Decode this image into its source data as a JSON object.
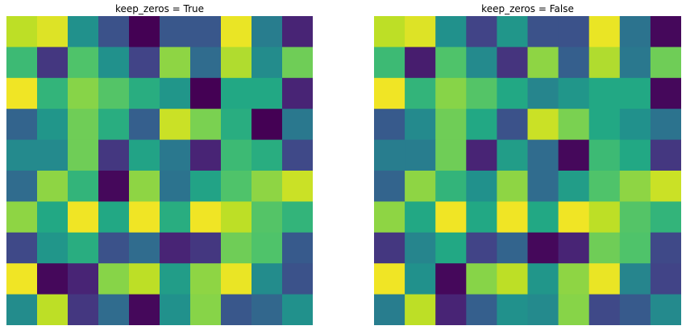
{
  "chart_data": [
    {
      "type": "heatmap",
      "title": "keep_zeros = True",
      "grid": false,
      "colormap": "viridis",
      "values": [
        [
          0.9,
          0.95,
          0.5,
          0.25,
          0.0,
          0.27,
          0.27,
          0.97,
          0.42,
          0.1
        ],
        [
          0.68,
          0.16,
          0.72,
          0.5,
          0.2,
          0.83,
          0.35,
          0.88,
          0.48,
          0.78
        ],
        [
          0.98,
          0.65,
          0.82,
          0.73,
          0.62,
          0.52,
          0.0,
          0.6,
          0.6,
          0.1
        ],
        [
          0.32,
          0.52,
          0.78,
          0.62,
          0.3,
          0.92,
          0.8,
          0.62,
          0.0,
          0.4
        ],
        [
          0.47,
          0.47,
          0.78,
          0.16,
          0.58,
          0.4,
          0.1,
          0.68,
          0.62,
          0.22
        ],
        [
          0.35,
          0.83,
          0.65,
          0.02,
          0.83,
          0.38,
          0.58,
          0.72,
          0.83,
          0.92
        ],
        [
          0.83,
          0.6,
          0.98,
          0.6,
          0.98,
          0.62,
          0.98,
          0.9,
          0.73,
          0.65
        ],
        [
          0.22,
          0.52,
          0.62,
          0.25,
          0.35,
          0.1,
          0.16,
          0.78,
          0.72,
          0.28
        ],
        [
          0.98,
          0.02,
          0.1,
          0.82,
          0.9,
          0.55,
          0.83,
          0.97,
          0.48,
          0.25
        ],
        [
          0.48,
          0.9,
          0.16,
          0.35,
          0.02,
          0.5,
          0.82,
          0.27,
          0.33,
          0.5
        ]
      ]
    },
    {
      "type": "heatmap",
      "title": "keep_zeros = False",
      "grid": false,
      "colormap": "viridis",
      "values": [
        [
          0.9,
          0.95,
          0.5,
          0.2,
          0.52,
          0.25,
          0.25,
          0.97,
          0.38,
          0.02
        ],
        [
          0.68,
          0.08,
          0.72,
          0.47,
          0.15,
          0.83,
          0.3,
          0.88,
          0.4,
          0.78
        ],
        [
          0.98,
          0.65,
          0.82,
          0.73,
          0.6,
          0.45,
          0.52,
          0.6,
          0.6,
          0.02
        ],
        [
          0.28,
          0.47,
          0.78,
          0.6,
          0.25,
          0.92,
          0.8,
          0.6,
          0.5,
          0.38
        ],
        [
          0.42,
          0.42,
          0.78,
          0.1,
          0.55,
          0.35,
          0.02,
          0.68,
          0.6,
          0.16
        ],
        [
          0.32,
          0.83,
          0.65,
          0.5,
          0.83,
          0.35,
          0.55,
          0.72,
          0.83,
          0.92
        ],
        [
          0.83,
          0.6,
          0.98,
          0.6,
          0.98,
          0.6,
          0.98,
          0.9,
          0.73,
          0.65
        ],
        [
          0.16,
          0.45,
          0.6,
          0.2,
          0.32,
          0.02,
          0.1,
          0.78,
          0.72,
          0.22
        ],
        [
          0.98,
          0.5,
          0.02,
          0.82,
          0.9,
          0.52,
          0.83,
          0.97,
          0.45,
          0.2
        ],
        [
          0.42,
          0.9,
          0.1,
          0.3,
          0.5,
          0.47,
          0.82,
          0.22,
          0.28,
          0.47
        ]
      ]
    }
  ]
}
